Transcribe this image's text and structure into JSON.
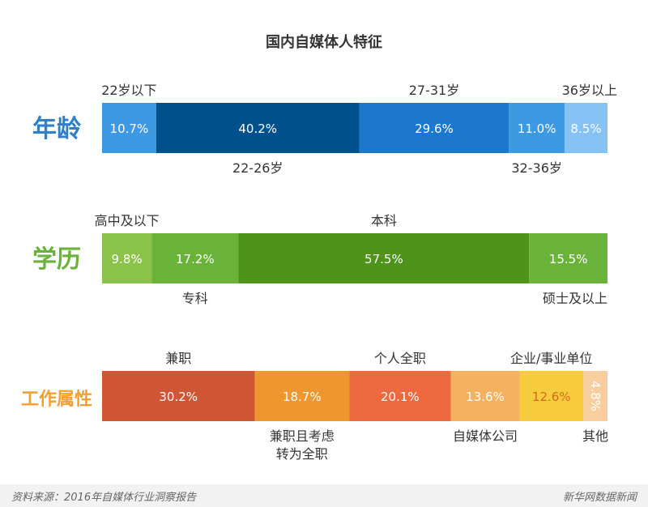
{
  "title": "国内自媒体人特征",
  "chart_data": [
    {
      "type": "bar",
      "stacked": "horizontal-100%",
      "row_label": "年龄",
      "row_label_color": "#2f80c8",
      "segments": [
        {
          "name": "22岁以下",
          "value": 10.7,
          "label": "10.7%",
          "color": "#3d9ae2",
          "name_pos": "top"
        },
        {
          "name": "22-26岁",
          "value": 40.2,
          "label": "40.2%",
          "color": "#00508c",
          "name_pos": "bottom"
        },
        {
          "name": "27-31岁",
          "value": 29.6,
          "label": "29.6%",
          "color": "#1c78cc",
          "name_pos": "top"
        },
        {
          "name": "32-36岁",
          "value": 11.0,
          "label": "11.0%",
          "color": "#3d9ae2",
          "name_pos": "bottom"
        },
        {
          "name": "36岁以上",
          "value": 8.5,
          "label": "8.5%",
          "color": "#87c2f5",
          "name_pos": "top"
        }
      ]
    },
    {
      "type": "bar",
      "stacked": "horizontal-100%",
      "row_label": "学历",
      "row_label_color": "#6ab33a",
      "segments": [
        {
          "name": "高中及以下",
          "value": 9.8,
          "label": "9.8%",
          "color": "#8bc34a",
          "name_pos": "top"
        },
        {
          "name": "专科",
          "value": 17.2,
          "label": "17.2%",
          "color": "#6ab33a",
          "name_pos": "bottom"
        },
        {
          "name": "本科",
          "value": 57.5,
          "label": "57.5%",
          "color": "#4f941a",
          "name_pos": "top"
        },
        {
          "name": "硕士及以上",
          "value": 15.5,
          "label": "15.5%",
          "color": "#6ab33a",
          "name_pos": "bottom"
        }
      ]
    },
    {
      "type": "bar",
      "stacked": "horizontal-100%",
      "row_label": "工作属性",
      "row_label_color": "#f0a030",
      "segments": [
        {
          "name": "兼职",
          "value": 30.2,
          "label": "30.2%",
          "color": "#cf5535",
          "name_pos": "top"
        },
        {
          "name": "兼职且考虑\n转为全职",
          "value": 18.7,
          "label": "18.7%",
          "color": "#f0962e",
          "name_pos": "bottom"
        },
        {
          "name": "个人全职",
          "value": 20.1,
          "label": "20.1%",
          "color": "#ee6a3e",
          "name_pos": "top"
        },
        {
          "name": "自媒体公司",
          "value": 13.6,
          "label": "13.6%",
          "color": "#f5b060",
          "name_pos": "bottom"
        },
        {
          "name": "企业/事业单位",
          "value": 12.6,
          "label": "12.6%",
          "color": "#f6cc3c",
          "name_pos": "top",
          "label_color": "#d46a1e"
        },
        {
          "name": "其他",
          "value": 4.8,
          "label": "4.8%",
          "color": "#f7cf9e",
          "name_pos": "bottom",
          "label_vertical": true
        }
      ]
    }
  ],
  "footer": {
    "source": "资料来源：2016年自媒体行业洞察报告",
    "brand": "新华网数据新闻"
  }
}
